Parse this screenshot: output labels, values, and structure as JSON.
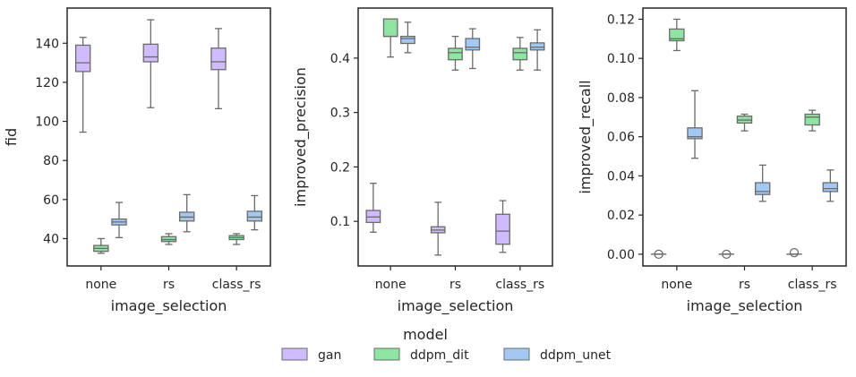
{
  "chart_data": [
    {
      "type": "box",
      "xlabel": "image_selection",
      "ylabel": "fid",
      "categories": [
        "none",
        "rs",
        "class_rs"
      ],
      "ylim": [
        26,
        158
      ],
      "yticks": [
        40,
        60,
        80,
        100,
        120,
        140
      ],
      "ytick_labels": [
        "40",
        "60",
        "80",
        "100",
        "120",
        "140"
      ],
      "series": [
        {
          "name": "gan",
          "boxes": [
            {
              "whislo": 94.5,
              "q1": 125.5,
              "med": 130,
              "q3": 139,
              "whishi": 143,
              "fliers": []
            },
            {
              "whislo": 107,
              "q1": 130.5,
              "med": 133,
              "q3": 139.5,
              "whishi": 152,
              "fliers": []
            },
            {
              "whislo": 106.5,
              "q1": 126.5,
              "med": 130.5,
              "q3": 137.5,
              "whishi": 147.5,
              "fliers": []
            }
          ]
        },
        {
          "name": "ddpm_dit",
          "boxes": [
            {
              "whislo": 32.5,
              "q1": 33.5,
              "med": 35,
              "q3": 36.5,
              "whishi": 40,
              "fliers": []
            },
            {
              "whislo": 37,
              "q1": 38.5,
              "med": 39.5,
              "q3": 41,
              "whishi": 42.5,
              "fliers": []
            },
            {
              "whislo": 37,
              "q1": 39.5,
              "med": 40.5,
              "q3": 41.5,
              "whishi": 42.5,
              "fliers": []
            }
          ]
        },
        {
          "name": "ddpm_unet",
          "boxes": [
            {
              "whislo": 40.5,
              "q1": 47,
              "med": 48.5,
              "q3": 50,
              "whishi": 58.5,
              "fliers": []
            },
            {
              "whislo": 43.5,
              "q1": 49,
              "med": 51,
              "q3": 53.5,
              "whishi": 62.5,
              "fliers": []
            },
            {
              "whislo": 44.5,
              "q1": 49,
              "med": 51,
              "q3": 54,
              "whishi": 62,
              "fliers": []
            }
          ]
        }
      ]
    },
    {
      "type": "box",
      "xlabel": "image_selection",
      "ylabel": "improved_precision",
      "categories": [
        "none",
        "rs",
        "class_rs"
      ],
      "ylim": [
        0.018,
        0.492
      ],
      "yticks": [
        0.1,
        0.2,
        0.3,
        0.4
      ],
      "ytick_labels": [
        "0.1",
        "0.2",
        "0.3",
        "0.4"
      ],
      "series": [
        {
          "name": "gan",
          "boxes": [
            {
              "whislo": 0.08,
              "q1": 0.098,
              "med": 0.108,
              "q3": 0.12,
              "whishi": 0.17,
              "fliers": []
            },
            {
              "whislo": 0.038,
              "q1": 0.079,
              "med": 0.084,
              "q3": 0.09,
              "whishi": 0.135,
              "fliers": []
            },
            {
              "whislo": 0.043,
              "q1": 0.058,
              "med": 0.082,
              "q3": 0.113,
              "whishi": 0.138,
              "fliers": []
            }
          ]
        },
        {
          "name": "ddpm_dit",
          "boxes": [
            {
              "whislo": 0.402,
              "q1": 0.44,
              "med": 0.44,
              "q3": 0.472,
              "whishi": 0.472,
              "fliers": []
            },
            {
              "whislo": 0.378,
              "q1": 0.397,
              "med": 0.41,
              "q3": 0.418,
              "whishi": 0.44,
              "fliers": []
            },
            {
              "whislo": 0.378,
              "q1": 0.397,
              "med": 0.41,
              "q3": 0.418,
              "whishi": 0.438,
              "fliers": []
            }
          ]
        },
        {
          "name": "ddpm_unet",
          "boxes": [
            {
              "whislo": 0.41,
              "q1": 0.427,
              "med": 0.436,
              "q3": 0.44,
              "whishi": 0.466,
              "fliers": []
            },
            {
              "whislo": 0.381,
              "q1": 0.415,
              "med": 0.42,
              "q3": 0.436,
              "whishi": 0.454,
              "fliers": []
            },
            {
              "whislo": 0.378,
              "q1": 0.415,
              "med": 0.42,
              "q3": 0.428,
              "whishi": 0.452,
              "fliers": []
            }
          ]
        }
      ]
    },
    {
      "type": "box",
      "xlabel": "image_selection",
      "ylabel": "improved_recall",
      "categories": [
        "none",
        "rs",
        "class_rs"
      ],
      "ylim": [
        -0.006,
        0.1257
      ],
      "yticks": [
        0.0,
        0.02,
        0.04,
        0.06,
        0.08,
        0.1,
        0.12
      ],
      "ytick_labels": [
        "0.00",
        "0.02",
        "0.04",
        "0.06",
        "0.08",
        "0.10",
        "0.12"
      ],
      "series": [
        {
          "name": "gan",
          "boxes": [
            {
              "whislo": 0,
              "q1": 0,
              "med": 0,
              "q3": 0,
              "whishi": 0,
              "fliers": [
                0
              ]
            },
            {
              "whislo": 0,
              "q1": 0,
              "med": 0,
              "q3": 0,
              "whishi": 0,
              "fliers": [
                0
              ]
            },
            {
              "whislo": 0,
              "q1": 0,
              "med": 0,
              "q3": 0,
              "whishi": 0,
              "fliers": [
                0.0008
              ]
            }
          ]
        },
        {
          "name": "ddpm_dit",
          "boxes": [
            {
              "whislo": 0.104,
              "q1": 0.109,
              "med": 0.11,
              "q3": 0.115,
              "whishi": 0.12,
              "fliers": []
            },
            {
              "whislo": 0.063,
              "q1": 0.067,
              "med": 0.0685,
              "q3": 0.0705,
              "whishi": 0.0715,
              "fliers": []
            },
            {
              "whislo": 0.063,
              "q1": 0.066,
              "med": 0.07,
              "q3": 0.0715,
              "whishi": 0.0735,
              "fliers": []
            }
          ]
        },
        {
          "name": "ddpm_unet",
          "boxes": [
            {
              "whislo": 0.049,
              "q1": 0.059,
              "med": 0.06,
              "q3": 0.0645,
              "whishi": 0.0835,
              "fliers": []
            },
            {
              "whislo": 0.027,
              "q1": 0.0305,
              "med": 0.032,
              "q3": 0.0365,
              "whishi": 0.0455,
              "fliers": []
            },
            {
              "whislo": 0.027,
              "q1": 0.032,
              "med": 0.0335,
              "q3": 0.0365,
              "whishi": 0.043,
              "fliers": []
            }
          ]
        }
      ]
    }
  ],
  "legend": {
    "title": "model",
    "placement": "bottom-center",
    "entries": [
      {
        "name": "gan",
        "color": "#d0bbff"
      },
      {
        "name": "ddpm_dit",
        "color": "#8de5a1"
      },
      {
        "name": "ddpm_unet",
        "color": "#a1c9f4"
      }
    ]
  },
  "colors": {
    "gan": "#d0bbff",
    "ddpm_dit": "#8de5a1",
    "ddpm_unet": "#a1c9f4",
    "edge": "#6b6b6b",
    "axis": "#262626"
  }
}
